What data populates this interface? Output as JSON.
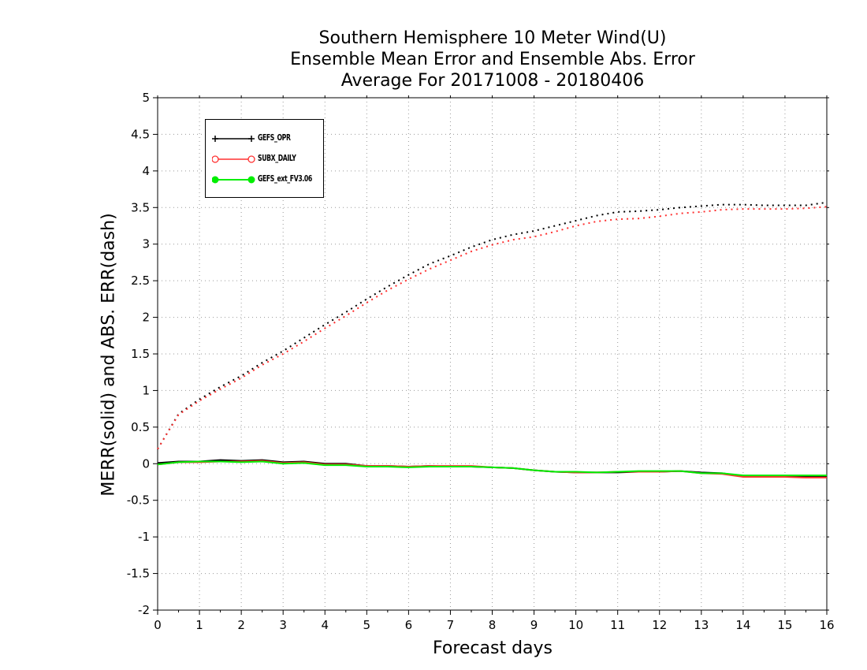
{
  "title": {
    "line1": "Southern Hemisphere 10 Meter Wind(U)",
    "line2": "Ensemble Mean Error and Ensemble Abs. Error",
    "line3": "Average For 20171008 - 20180406"
  },
  "chart_data": {
    "type": "line",
    "xlabel": "Forecast days",
    "ylabel": "MERR(solid) and ABS. ERR(dash)",
    "xlim": [
      0,
      16
    ],
    "ylim": [
      -2,
      5
    ],
    "xticks": [
      "0",
      "1",
      "2",
      "3",
      "4",
      "5",
      "6",
      "7",
      "8",
      "9",
      "10",
      "11",
      "12",
      "13",
      "14",
      "15",
      "16"
    ],
    "yticks": [
      "-2",
      "-1.5",
      "-1",
      "-0.5",
      "0",
      "0.5",
      "1",
      "1.5",
      "2",
      "2.5",
      "3",
      "3.5",
      "4",
      "4.5",
      "5"
    ],
    "grid": true,
    "legend_position": "top-left",
    "x": [
      0,
      0.5,
      1,
      1.5,
      2,
      2.5,
      3,
      3.5,
      4,
      4.5,
      5,
      5.5,
      6,
      6.5,
      7,
      7.5,
      8,
      8.5,
      9,
      9.5,
      10,
      10.5,
      11,
      11.5,
      12,
      12.5,
      13,
      13.5,
      14,
      14.5,
      15,
      15.5,
      16
    ],
    "series": [
      {
        "name": "GEFS_OPR",
        "color": "#000000",
        "merr": [
          0.01,
          0.03,
          0.03,
          0.05,
          0.04,
          0.05,
          0.02,
          0.03,
          0.0,
          0.0,
          -0.03,
          -0.03,
          -0.04,
          -0.03,
          -0.04,
          -0.04,
          -0.05,
          -0.06,
          -0.09,
          -0.11,
          -0.12,
          -0.12,
          -0.12,
          -0.11,
          -0.11,
          -0.1,
          -0.12,
          -0.13,
          -0.17,
          -0.18,
          -0.18,
          -0.18,
          -0.18
        ],
        "abs_err": [
          0.2,
          0.68,
          0.88,
          1.05,
          1.2,
          1.38,
          1.54,
          1.72,
          1.9,
          2.07,
          2.25,
          2.42,
          2.58,
          2.73,
          2.84,
          2.96,
          3.06,
          3.13,
          3.18,
          3.25,
          3.32,
          3.39,
          3.44,
          3.45,
          3.47,
          3.5,
          3.52,
          3.54,
          3.54,
          3.53,
          3.53,
          3.53,
          3.57
        ]
      },
      {
        "name": "SUBX_DAILY",
        "color": "#ff3030",
        "merr": [
          -0.01,
          0.02,
          0.02,
          0.03,
          0.03,
          0.04,
          0.01,
          0.02,
          -0.01,
          -0.01,
          -0.03,
          -0.03,
          -0.04,
          -0.03,
          -0.03,
          -0.03,
          -0.05,
          -0.06,
          -0.09,
          -0.11,
          -0.12,
          -0.12,
          -0.11,
          -0.11,
          -0.11,
          -0.1,
          -0.13,
          -0.14,
          -0.18,
          -0.18,
          -0.18,
          -0.19,
          -0.19
        ],
        "abs_err": [
          0.2,
          0.67,
          0.86,
          1.02,
          1.17,
          1.35,
          1.5,
          1.67,
          1.85,
          2.02,
          2.2,
          2.37,
          2.52,
          2.66,
          2.78,
          2.9,
          2.99,
          3.06,
          3.1,
          3.17,
          3.25,
          3.31,
          3.34,
          3.35,
          3.38,
          3.42,
          3.44,
          3.47,
          3.48,
          3.48,
          3.48,
          3.49,
          3.51
        ]
      },
      {
        "name": "GEFS_ext_FV3.06",
        "color": "#00ee00",
        "merr": [
          -0.01,
          0.02,
          0.03,
          0.03,
          0.02,
          0.03,
          0.0,
          0.01,
          -0.02,
          -0.02,
          -0.04,
          -0.04,
          -0.05,
          -0.04,
          -0.04,
          -0.04,
          -0.05,
          -0.06,
          -0.09,
          -0.11,
          -0.11,
          -0.12,
          -0.11,
          -0.1,
          -0.1,
          -0.1,
          -0.13,
          -0.13,
          -0.16,
          -0.16,
          -0.16,
          -0.16,
          -0.16
        ],
        "abs_err": null
      }
    ]
  }
}
